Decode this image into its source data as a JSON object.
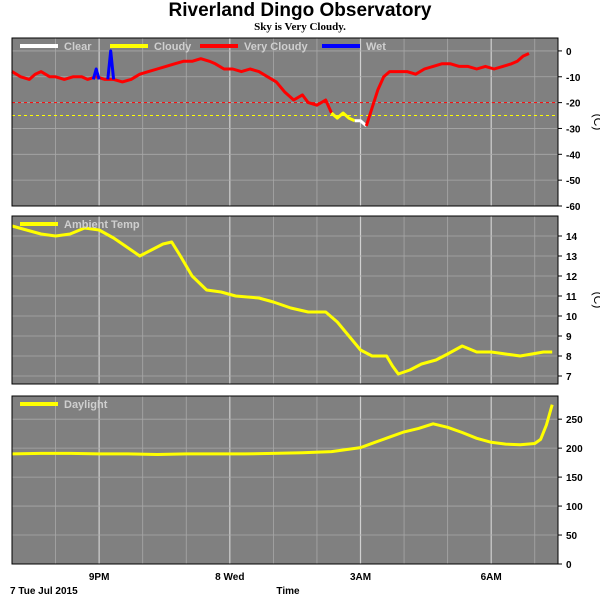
{
  "header": {
    "title": "Riverland Dingo Observatory",
    "subtitle": "Sky is Very Cloudy."
  },
  "colors": {
    "panel_bg": "#808080",
    "grid": "#b8b8b8",
    "clear": "#ffffff",
    "cloudy": "#ffff00",
    "very_cloudy": "#ff0000",
    "wet": "#0000ff"
  },
  "footer": {
    "date_label": "7 Tue Jul 2015",
    "x_label": "Time"
  },
  "chart_data": [
    {
      "type": "line",
      "name": "cloud",
      "legend": [
        "Clear",
        "Cloudy",
        "Very Cloudy",
        "Wet"
      ],
      "ylim": [
        -60,
        5
      ],
      "yticks": [
        "0",
        "-10",
        "-20",
        "-30",
        "-40",
        "-50",
        "-60"
      ],
      "ytick_values": [
        0,
        -10,
        -20,
        -30,
        -40,
        -50,
        -60
      ],
      "unit": "(C)",
      "thresholds": [
        {
          "value": -20,
          "color": "#ff0000"
        },
        {
          "value": -25,
          "color": "#ffff00"
        }
      ],
      "series": [
        {
          "color": "#ff0000",
          "points": [
            [
              0,
              -8
            ],
            [
              0.3,
              -10
            ],
            [
              0.6,
              -11
            ],
            [
              0.8,
              -9
            ],
            [
              1.0,
              -8
            ],
            [
              1.3,
              -10
            ],
            [
              1.5,
              -10
            ],
            [
              1.8,
              -11
            ],
            [
              2.1,
              -10
            ],
            [
              2.4,
              -10
            ],
            [
              2.6,
              -11
            ],
            [
              2.9,
              -10
            ],
            [
              3.2,
              -11
            ],
            [
              3.5,
              -11
            ],
            [
              3.8,
              -12
            ],
            [
              4.1,
              -11
            ],
            [
              4.4,
              -9
            ],
            [
              4.7,
              -8
            ],
            [
              5.0,
              -7
            ],
            [
              5.3,
              -6
            ],
            [
              5.6,
              -5
            ],
            [
              5.9,
              -4
            ],
            [
              6.2,
              -4
            ],
            [
              6.5,
              -3
            ],
            [
              6.8,
              -4
            ],
            [
              7.0,
              -5
            ],
            [
              7.3,
              -7
            ],
            [
              7.6,
              -7
            ],
            [
              7.9,
              -8
            ],
            [
              8.2,
              -7
            ],
            [
              8.5,
              -8
            ],
            [
              8.8,
              -10
            ],
            [
              9.1,
              -12
            ],
            [
              9.4,
              -16
            ],
            [
              9.7,
              -19
            ],
            [
              10.0,
              -17
            ],
            [
              10.2,
              -20
            ],
            [
              10.5,
              -21
            ],
            [
              10.8,
              -19
            ],
            [
              11.0,
              -24
            ]
          ]
        },
        {
          "color": "#ffff00",
          "points": [
            [
              11.0,
              -24
            ],
            [
              11.2,
              -26
            ],
            [
              11.4,
              -24
            ],
            [
              11.6,
              -26
            ],
            [
              11.8,
              -27
            ]
          ]
        },
        {
          "color": "#ffffff",
          "points": [
            [
              11.8,
              -27
            ],
            [
              12.0,
              -27
            ],
            [
              12.2,
              -29
            ]
          ]
        },
        {
          "color": "#ff0000",
          "points": [
            [
              12.2,
              -29
            ],
            [
              12.4,
              -22
            ],
            [
              12.6,
              -15
            ],
            [
              12.8,
              -10
            ],
            [
              13.0,
              -8
            ],
            [
              13.3,
              -8
            ],
            [
              13.6,
              -8
            ],
            [
              13.9,
              -9
            ],
            [
              14.2,
              -7
            ],
            [
              14.5,
              -6
            ],
            [
              14.8,
              -5
            ],
            [
              15.1,
              -5
            ],
            [
              15.4,
              -6
            ],
            [
              15.7,
              -6
            ],
            [
              16.0,
              -7
            ],
            [
              16.3,
              -6
            ],
            [
              16.6,
              -7
            ],
            [
              16.9,
              -6
            ],
            [
              17.2,
              -5
            ],
            [
              17.4,
              -4
            ],
            [
              17.6,
              -2
            ],
            [
              17.8,
              -1
            ]
          ]
        },
        {
          "color": "#0000ff",
          "points": [
            [
              2.8,
              -11
            ],
            [
              2.9,
              -7
            ],
            [
              3.0,
              -11
            ]
          ]
        },
        {
          "color": "#0000ff",
          "points": [
            [
              3.3,
              -11
            ],
            [
              3.4,
              0
            ],
            [
              3.5,
              -11
            ]
          ]
        }
      ]
    },
    {
      "type": "line",
      "name": "ambient",
      "legend": [
        "Ambient Temp"
      ],
      "ylim": [
        6.6,
        15
      ],
      "yticks": [
        "14",
        "13",
        "12",
        "11",
        "10",
        "9",
        "8",
        "7"
      ],
      "ytick_values": [
        14,
        13,
        12,
        11,
        10,
        9,
        8,
        7
      ],
      "unit": "(C)",
      "series": [
        {
          "color": "#ffff00",
          "points": [
            [
              0,
              14.5
            ],
            [
              0.5,
              14.3
            ],
            [
              1.0,
              14.1
            ],
            [
              1.5,
              14.0
            ],
            [
              2.0,
              14.1
            ],
            [
              2.5,
              14.4
            ],
            [
              3.0,
              14.3
            ],
            [
              3.5,
              13.9
            ],
            [
              4.0,
              13.4
            ],
            [
              4.4,
              13.0
            ],
            [
              4.8,
              13.3
            ],
            [
              5.2,
              13.6
            ],
            [
              5.5,
              13.7
            ],
            [
              5.8,
              13.0
            ],
            [
              6.2,
              12.0
            ],
            [
              6.7,
              11.3
            ],
            [
              7.2,
              11.2
            ],
            [
              7.7,
              11.0
            ],
            [
              8.5,
              10.9
            ],
            [
              9.0,
              10.7
            ],
            [
              9.6,
              10.4
            ],
            [
              10.2,
              10.2
            ],
            [
              10.8,
              10.2
            ],
            [
              11.2,
              9.7
            ],
            [
              11.6,
              9.0
            ],
            [
              12.0,
              8.3
            ],
            [
              12.4,
              8.0
            ],
            [
              12.9,
              8.0
            ],
            [
              13.1,
              7.5
            ],
            [
              13.3,
              7.1
            ],
            [
              13.7,
              7.3
            ],
            [
              14.1,
              7.6
            ],
            [
              14.6,
              7.8
            ],
            [
              15.0,
              8.1
            ],
            [
              15.5,
              8.5
            ],
            [
              16.0,
              8.2
            ],
            [
              16.5,
              8.2
            ],
            [
              17.0,
              8.1
            ],
            [
              17.5,
              8.0
            ],
            [
              17.9,
              8.1
            ],
            [
              18.3,
              8.2
            ],
            [
              18.6,
              8.2
            ]
          ]
        }
      ]
    },
    {
      "type": "line",
      "name": "daylight",
      "legend": [
        "Daylight"
      ],
      "ylim": [
        0,
        290
      ],
      "yticks": [
        "250",
        "200",
        "150",
        "100",
        "50",
        "0"
      ],
      "ytick_values": [
        250,
        200,
        150,
        100,
        50,
        0
      ],
      "unit": "",
      "series": [
        {
          "color": "#ffff00",
          "points": [
            [
              0,
              190
            ],
            [
              1,
              191
            ],
            [
              2,
              191
            ],
            [
              3,
              190
            ],
            [
              4,
              190
            ],
            [
              5,
              189
            ],
            [
              6,
              190
            ],
            [
              7,
              190
            ],
            [
              8,
              190
            ],
            [
              9,
              191
            ],
            [
              10,
              192
            ],
            [
              11,
              194
            ],
            [
              12,
              201
            ],
            [
              12.5,
              210
            ],
            [
              13,
              219
            ],
            [
              13.5,
              228
            ],
            [
              14,
              234
            ],
            [
              14.5,
              242
            ],
            [
              15,
              236
            ],
            [
              15.5,
              227
            ],
            [
              16,
              217
            ],
            [
              16.5,
              210
            ],
            [
              17,
              207
            ],
            [
              17.5,
              206
            ],
            [
              18,
              208
            ],
            [
              18.2,
              215
            ],
            [
              18.4,
              240
            ],
            [
              18.6,
              275
            ]
          ]
        }
      ]
    }
  ],
  "x_axis": {
    "range": [
      0,
      18.8
    ],
    "ticks": [
      {
        "pos": 3.0,
        "label": "9PM"
      },
      {
        "pos": 7.5,
        "label": "8 Wed"
      },
      {
        "pos": 12.0,
        "label": "3AM"
      },
      {
        "pos": 16.5,
        "label": "6AM"
      }
    ],
    "minor_step": 1.5
  }
}
